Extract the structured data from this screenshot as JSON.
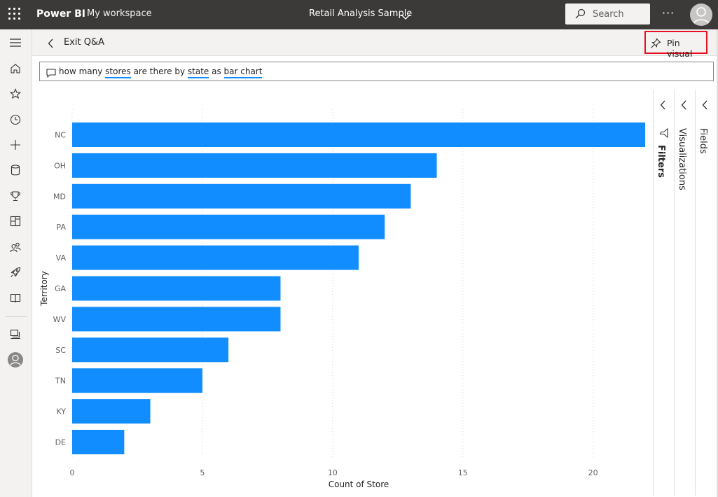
{
  "topbar": {
    "app_name": "Power BI",
    "workspace": "My workspace",
    "report_title": "Retail Analysis Sample",
    "search_placeholder": "Search",
    "more_label": "···"
  },
  "subbar": {
    "exit_label": "Exit Q&A",
    "pin_label": "Pin visual"
  },
  "qa": {
    "question": [
      {
        "text": "how many ",
        "term": false
      },
      {
        "text": "stores",
        "term": true
      },
      {
        "text": " are there by ",
        "term": false
      },
      {
        "text": "state",
        "term": true
      },
      {
        "text": " as ",
        "term": false
      },
      {
        "text": "bar chart",
        "term": true
      }
    ]
  },
  "nav": {
    "icons": [
      "hamburger-icon",
      "home-icon",
      "star-icon",
      "clock-icon",
      "plus-icon",
      "database-icon",
      "trophy-icon",
      "apps-icon",
      "people-icon",
      "rocket-icon",
      "book-icon",
      "workspaces-icon",
      "avatar-icon"
    ]
  },
  "panes": {
    "filters": "Filters",
    "visualizations": "Visualizations",
    "fields": "Fields"
  },
  "colors": {
    "topbar": "#3b3a39",
    "bar": "#118dff",
    "highlight_border": "#e81123"
  },
  "chart_data": {
    "type": "bar",
    "orientation": "horizontal",
    "categories": [
      "NC",
      "OH",
      "MD",
      "PA",
      "VA",
      "GA",
      "WV",
      "SC",
      "TN",
      "KY",
      "DE"
    ],
    "values": [
      22,
      14,
      13,
      12,
      11,
      8,
      8,
      6,
      5,
      3,
      2
    ],
    "xlabel": "Count of Store",
    "ylabel": "Territory",
    "xlim": [
      0,
      22
    ],
    "xticks": [
      0,
      5,
      10,
      15,
      20
    ],
    "grid": true,
    "legend": "none"
  }
}
